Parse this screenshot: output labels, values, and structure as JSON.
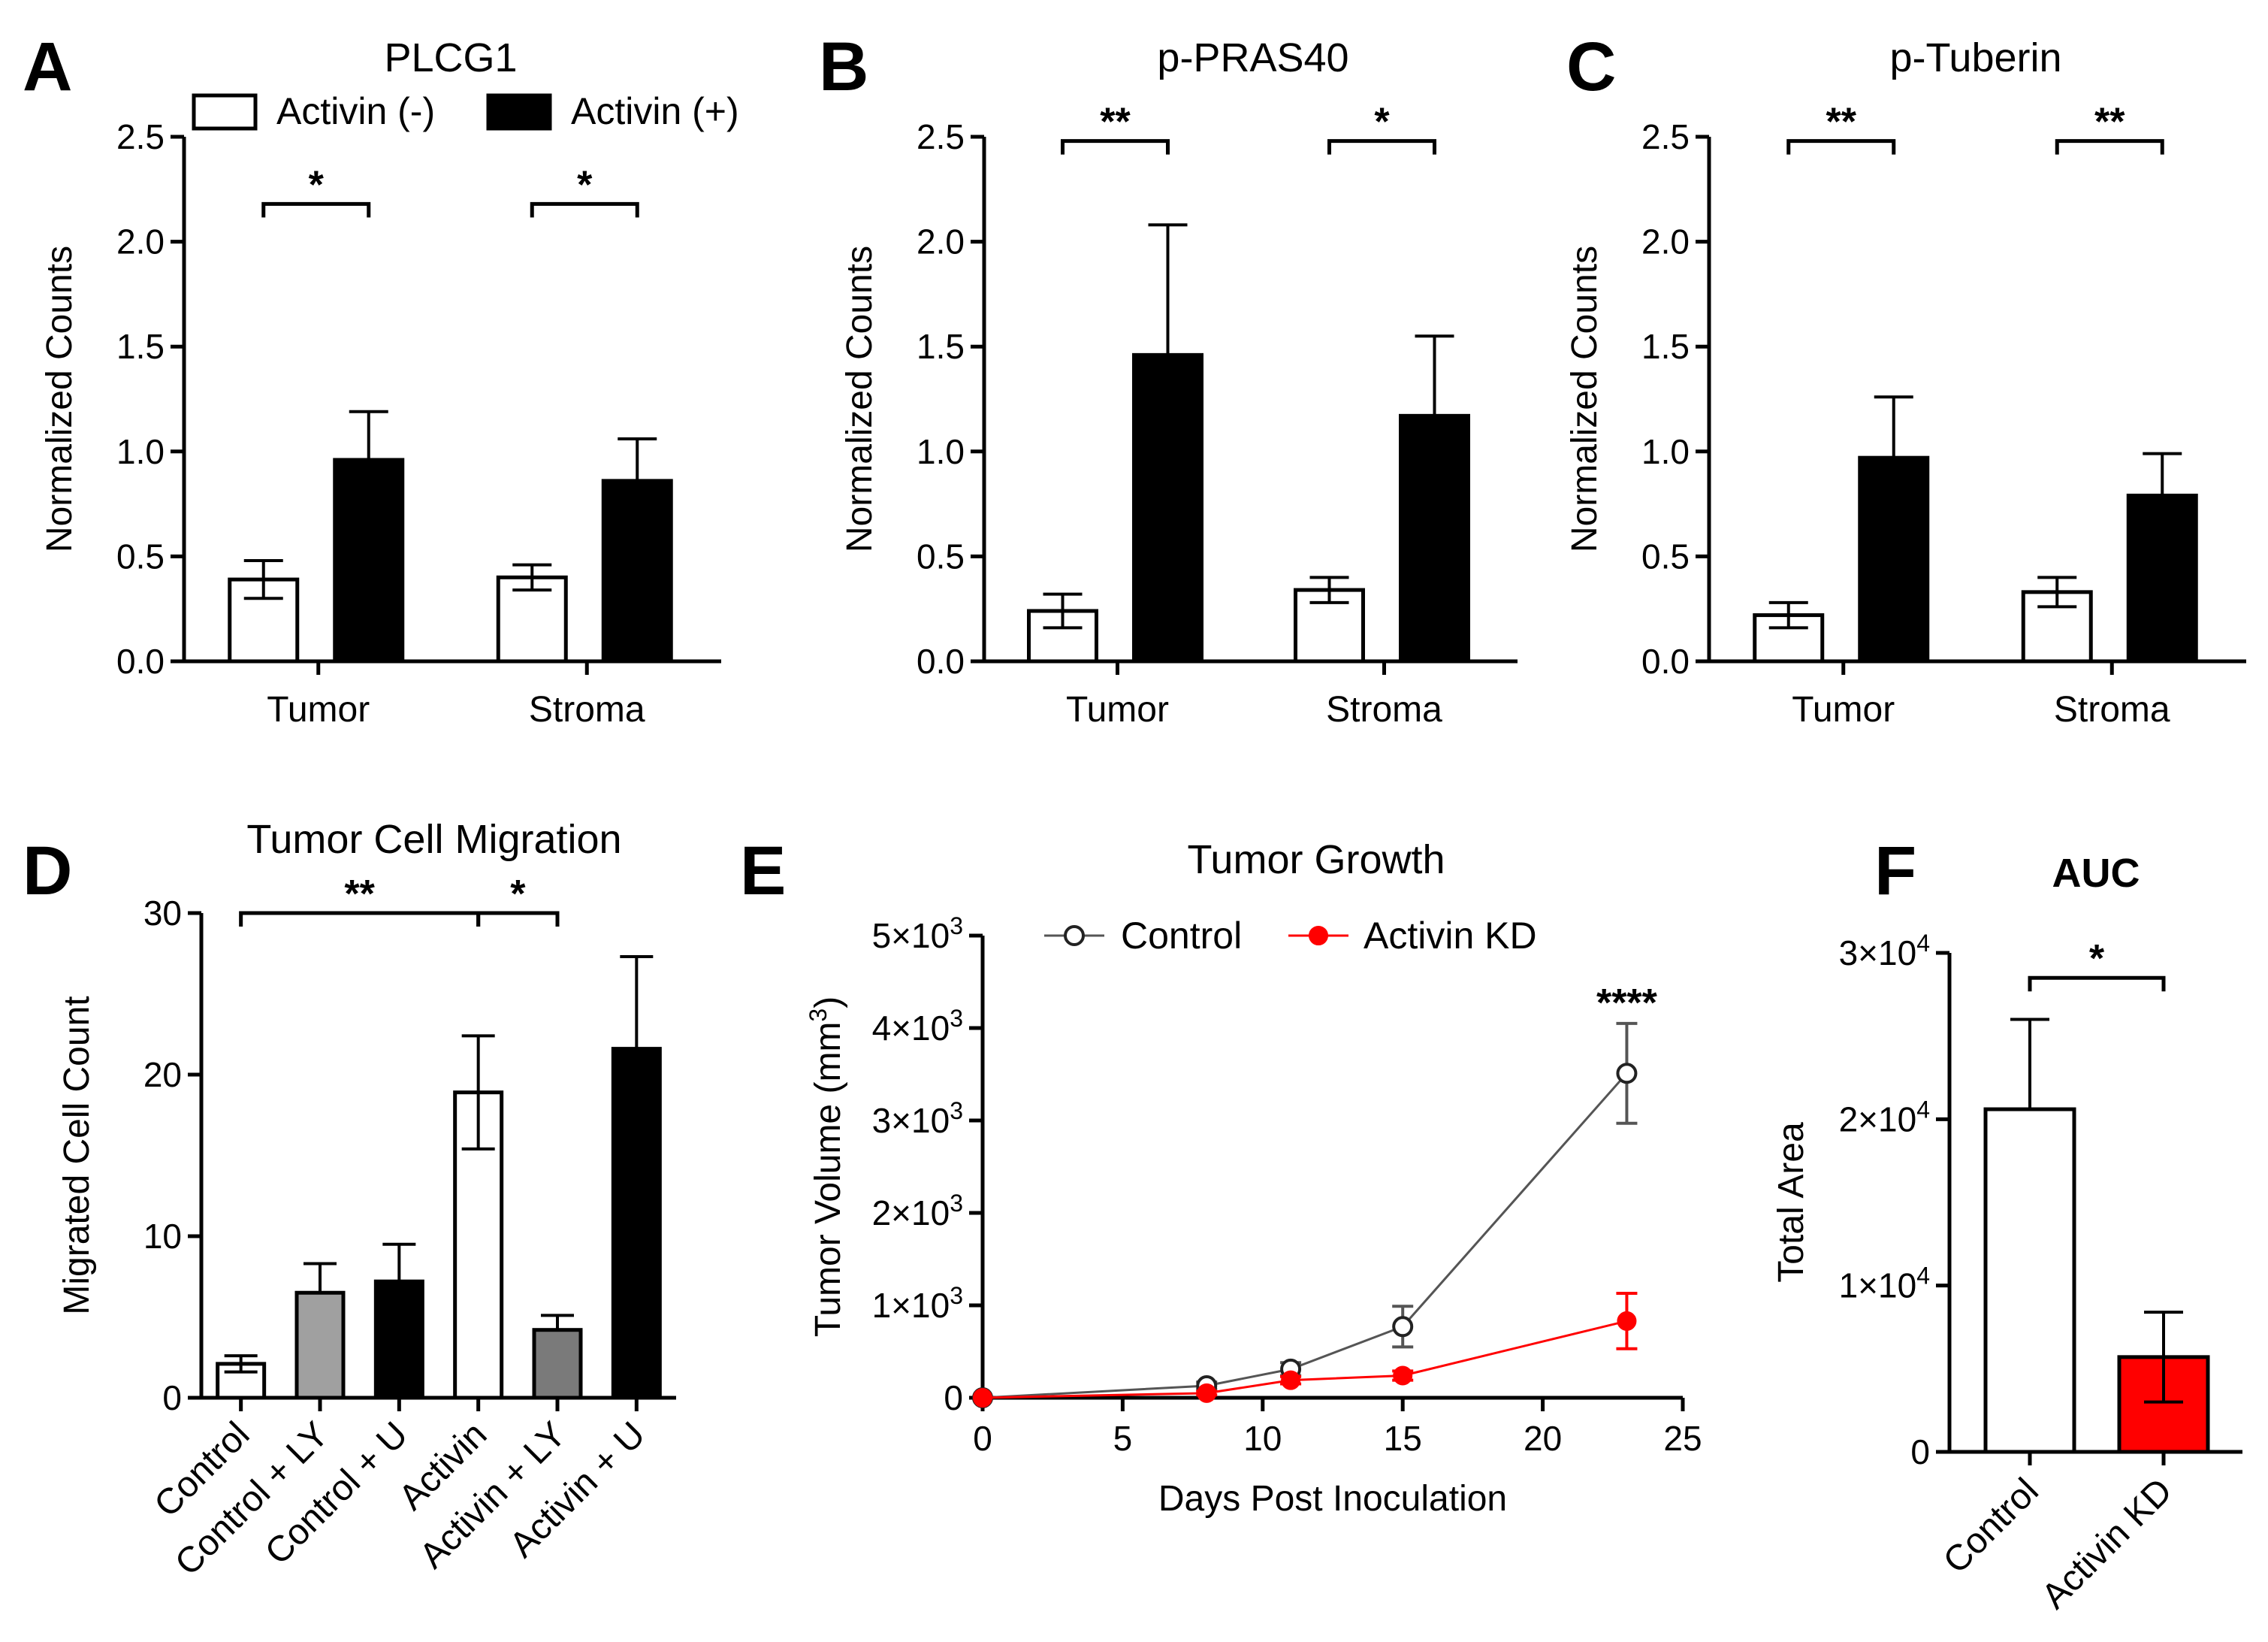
{
  "chart_data": [
    {
      "panel": "A",
      "type": "bar",
      "title": "PLCG1",
      "ylabel": "Normalized Counts",
      "xlabel": "",
      "ylim": [
        0,
        2.5
      ],
      "yticks": [
        "0.0",
        "0.5",
        "1.0",
        "1.5",
        "2.0",
        "2.5"
      ],
      "categories": [
        "Tumor",
        "Stroma"
      ],
      "legend": [
        "Activin (-)",
        "Activin (+)"
      ],
      "series": [
        {
          "name": "Activin (-)",
          "color": "#ffffff",
          "values": [
            0.39,
            0.4
          ],
          "errors": [
            0.09,
            0.06
          ]
        },
        {
          "name": "Activin (+)",
          "color": "#000000",
          "values": [
            0.96,
            0.86
          ],
          "errors": [
            0.23,
            0.2
          ]
        }
      ],
      "significance": [
        {
          "group": 0,
          "y": 2.18,
          "label": "*"
        },
        {
          "group": 1,
          "y": 2.18,
          "label": "*"
        }
      ]
    },
    {
      "panel": "B",
      "type": "bar",
      "title": "p-PRAS40",
      "ylabel": "Normalized Counts",
      "xlabel": "",
      "ylim": [
        0,
        2.5
      ],
      "yticks": [
        "0.0",
        "0.5",
        "1.0",
        "1.5",
        "2.0",
        "2.5"
      ],
      "categories": [
        "Tumor",
        "Stroma"
      ],
      "series": [
        {
          "name": "Activin (-)",
          "color": "#ffffff",
          "values": [
            0.24,
            0.34
          ],
          "errors": [
            0.08,
            0.06
          ]
        },
        {
          "name": "Activin (+)",
          "color": "#000000",
          "values": [
            1.46,
            1.17
          ],
          "errors": [
            0.62,
            0.38
          ]
        }
      ],
      "significance": [
        {
          "group": 0,
          "y": 2.48,
          "label": "**"
        },
        {
          "group": 1,
          "y": 2.48,
          "label": "*"
        }
      ]
    },
    {
      "panel": "C",
      "type": "bar",
      "title": "p-Tuberin",
      "ylabel": "Normalized Counts",
      "xlabel": "",
      "ylim": [
        0,
        2.5
      ],
      "yticks": [
        "0.0",
        "0.5",
        "1.0",
        "1.5",
        "2.0",
        "2.5"
      ],
      "categories": [
        "Tumor",
        "Stroma"
      ],
      "series": [
        {
          "name": "Activin (-)",
          "color": "#ffffff",
          "values": [
            0.22,
            0.33
          ],
          "errors": [
            0.06,
            0.07
          ]
        },
        {
          "name": "Activin (+)",
          "color": "#000000",
          "values": [
            0.97,
            0.79
          ],
          "errors": [
            0.29,
            0.2
          ]
        }
      ],
      "significance": [
        {
          "group": 0,
          "y": 2.48,
          "label": "**"
        },
        {
          "group": 1,
          "y": 2.48,
          "label": "**"
        }
      ]
    },
    {
      "panel": "D",
      "type": "bar",
      "title": "Tumor Cell Migration",
      "ylabel": "Migrated Cell Count",
      "xlabel": "",
      "ylim": [
        0,
        30
      ],
      "yticks": [
        "0",
        "10",
        "20",
        "30"
      ],
      "categories": [
        "Control",
        "Control + LY",
        "Control + U",
        "Activin",
        "Activin + LY",
        "Activin + U"
      ],
      "values": [
        2.1,
        6.5,
        7.2,
        18.9,
        4.2,
        21.6
      ],
      "errors": [
        0.5,
        1.8,
        2.3,
        3.5,
        0.9,
        5.7
      ],
      "colors": [
        "#ffffff",
        "#a0a0a0",
        "#000000",
        "#ffffff",
        "#7a7a7a",
        "#000000"
      ],
      "significance": [
        {
          "from": 0,
          "to": 3,
          "y": 30,
          "label": "**"
        },
        {
          "from": 3,
          "to": 4,
          "y": 30,
          "label": "*"
        }
      ]
    },
    {
      "panel": "E",
      "type": "line",
      "title": "Tumor Growth",
      "xlabel": "Days Post Inoculation",
      "ylabel": "Tumor Volume (mm",
      "ylabel_sup": "3",
      "ylabel_end": ")",
      "xlim": [
        0,
        25
      ],
      "ylim": [
        0,
        5000
      ],
      "xticks": [
        "0",
        "5",
        "10",
        "15",
        "20",
        "25"
      ],
      "yticks": [
        {
          "base": "0",
          "sup": ""
        },
        {
          "base": "1×10",
          "sup": "3"
        },
        {
          "base": "2×10",
          "sup": "3"
        },
        {
          "base": "3×10",
          "sup": "3"
        },
        {
          "base": "4×10",
          "sup": "3"
        },
        {
          "base": "5×10",
          "sup": "3"
        }
      ],
      "legend": [
        "Control",
        "Activin KD"
      ],
      "series": [
        {
          "name": "Control",
          "color": "#555555",
          "x": [
            0,
            8,
            11,
            15,
            23
          ],
          "y": [
            0,
            130,
            310,
            770,
            3510
          ],
          "errors": [
            0,
            40,
            70,
            220,
            540
          ]
        },
        {
          "name": "Activin KD",
          "color": "#ff0000",
          "x": [
            0,
            8,
            11,
            15,
            23
          ],
          "y": [
            0,
            50,
            190,
            240,
            830
          ],
          "errors": [
            0,
            20,
            40,
            50,
            300
          ]
        }
      ],
      "annotation": "****"
    },
    {
      "panel": "F",
      "type": "bar",
      "title": "AUC",
      "ylabel": "Total Area",
      "xlabel": "",
      "ylim": [
        0,
        30000
      ],
      "yticks": [
        {
          "base": "0",
          "sup": ""
        },
        {
          "base": "1×10",
          "sup": "4"
        },
        {
          "base": "2×10",
          "sup": "4"
        },
        {
          "base": "3×10",
          "sup": "4"
        }
      ],
      "categories": [
        "Control",
        "Activin KD"
      ],
      "values": [
        20600,
        5700
      ],
      "errors": [
        5400,
        2700
      ],
      "colors": [
        "#ffffff",
        "#ff0000"
      ],
      "significance": [
        {
          "from": 0,
          "to": 1,
          "y": 28500,
          "label": "*"
        }
      ]
    }
  ]
}
